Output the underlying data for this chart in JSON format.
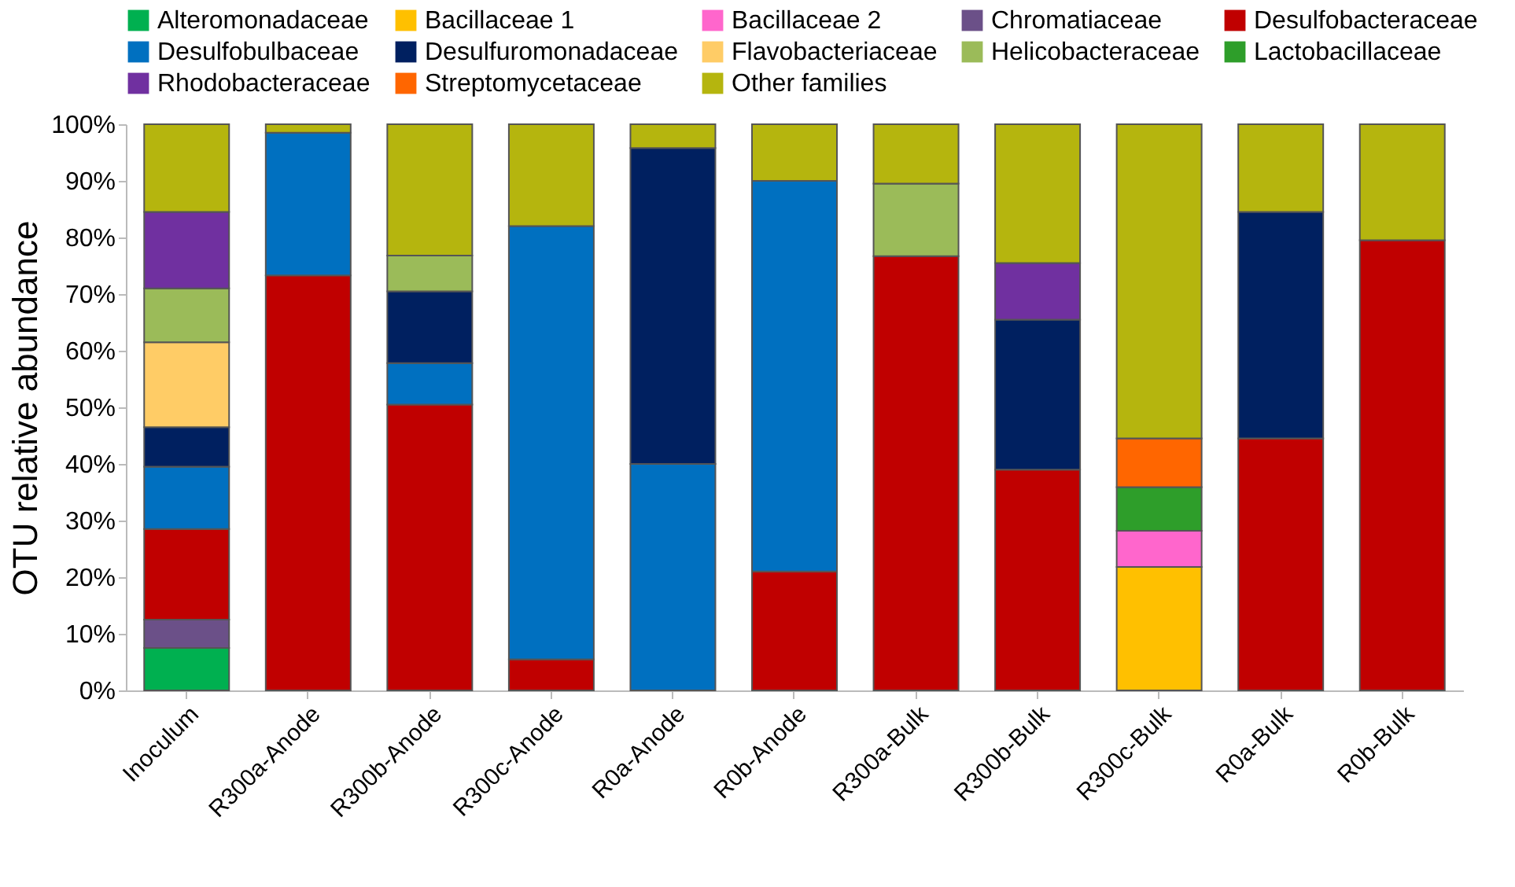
{
  "chart_data": {
    "type": "bar",
    "stacked": true,
    "ylabel": "OTU relative abundance",
    "legend": "top",
    "grid": false,
    "categories": [
      "Inoculum",
      "R300a-Anode",
      "R300b-Anode",
      "R300c-Anode",
      "R0a-Anode",
      "R0b-Anode",
      "R300a-Bulk",
      "R300b-Bulk",
      "R300c-Bulk",
      "R0a-Bulk",
      "R0b-Bulk"
    ],
    "ylim": [
      0,
      100
    ],
    "yticks": [
      {
        "value": 0,
        "label": "0%"
      },
      {
        "value": 10,
        "label": "10%"
      },
      {
        "value": 20,
        "label": "20%"
      },
      {
        "value": 30,
        "label": "30%"
      },
      {
        "value": 40,
        "label": "40%"
      },
      {
        "value": 50,
        "label": "50%"
      },
      {
        "value": 60,
        "label": "60%"
      },
      {
        "value": 70,
        "label": "70%"
      },
      {
        "value": 80,
        "label": "80%"
      },
      {
        "value": 90,
        "label": "90%"
      },
      {
        "value": 100,
        "label": "100%"
      }
    ],
    "series": [
      {
        "name": "Alteromonadaceae",
        "color": "#00b050",
        "values": [
          7.5,
          null,
          null,
          null,
          null,
          null,
          null,
          null,
          null,
          null,
          null
        ]
      },
      {
        "name": "Bacillaceae 1",
        "color": "#ffc000",
        "values": [
          null,
          null,
          null,
          null,
          null,
          null,
          null,
          null,
          21.8,
          null,
          null
        ]
      },
      {
        "name": "Bacillaceae 2",
        "color": "#ff66cc",
        "values": [
          null,
          null,
          null,
          null,
          null,
          null,
          null,
          null,
          6.4,
          null,
          null
        ]
      },
      {
        "name": "Chromatiaceae",
        "color": "#6b5088",
        "values": [
          5,
          null,
          null,
          null,
          null,
          null,
          null,
          null,
          null,
          null,
          null
        ]
      },
      {
        "name": "Desulfobacteraceae",
        "color": "#c00000",
        "values": [
          16,
          73.3,
          50.5,
          5.5,
          null,
          21,
          76.7,
          39,
          null,
          44.5,
          79.5
        ]
      },
      {
        "name": "Desulfobulbaceae",
        "color": "#0070c0",
        "values": [
          11,
          25.2,
          7.3,
          76.5,
          40,
          69,
          null,
          null,
          null,
          null,
          null
        ]
      },
      {
        "name": "Desulfuromonadaceae",
        "color": "#002060",
        "values": [
          7,
          null,
          12.7,
          null,
          55.8,
          null,
          null,
          26.5,
          null,
          40,
          null
        ]
      },
      {
        "name": "Flavobacteriaceae",
        "color": "#ffcc66",
        "values": [
          15,
          null,
          null,
          null,
          null,
          null,
          null,
          null,
          null,
          null,
          null
        ]
      },
      {
        "name": "Helicobacteraceae",
        "color": "#9bbb59",
        "values": [
          9.5,
          null,
          6.3,
          null,
          null,
          null,
          12.8,
          null,
          null,
          null,
          null
        ]
      },
      {
        "name": "Lactobacillaceae",
        "color": "#2e9e2a",
        "values": [
          null,
          null,
          null,
          null,
          null,
          null,
          null,
          null,
          7.7,
          null,
          null
        ]
      },
      {
        "name": "Rhodobacteraceae",
        "color": "#7030a0",
        "values": [
          13.5,
          null,
          null,
          null,
          null,
          null,
          null,
          10,
          null,
          null,
          null
        ]
      },
      {
        "name": "Streptomycetaceae",
        "color": "#ff6600",
        "values": [
          null,
          null,
          null,
          null,
          null,
          null,
          null,
          null,
          8.6,
          null,
          null
        ]
      },
      {
        "name": "Other families",
        "color": "#b5b50e",
        "values": [
          15.5,
          1.5,
          23.2,
          18,
          4.2,
          10,
          10.5,
          24.5,
          55.5,
          15.5,
          20.5
        ]
      }
    ]
  }
}
